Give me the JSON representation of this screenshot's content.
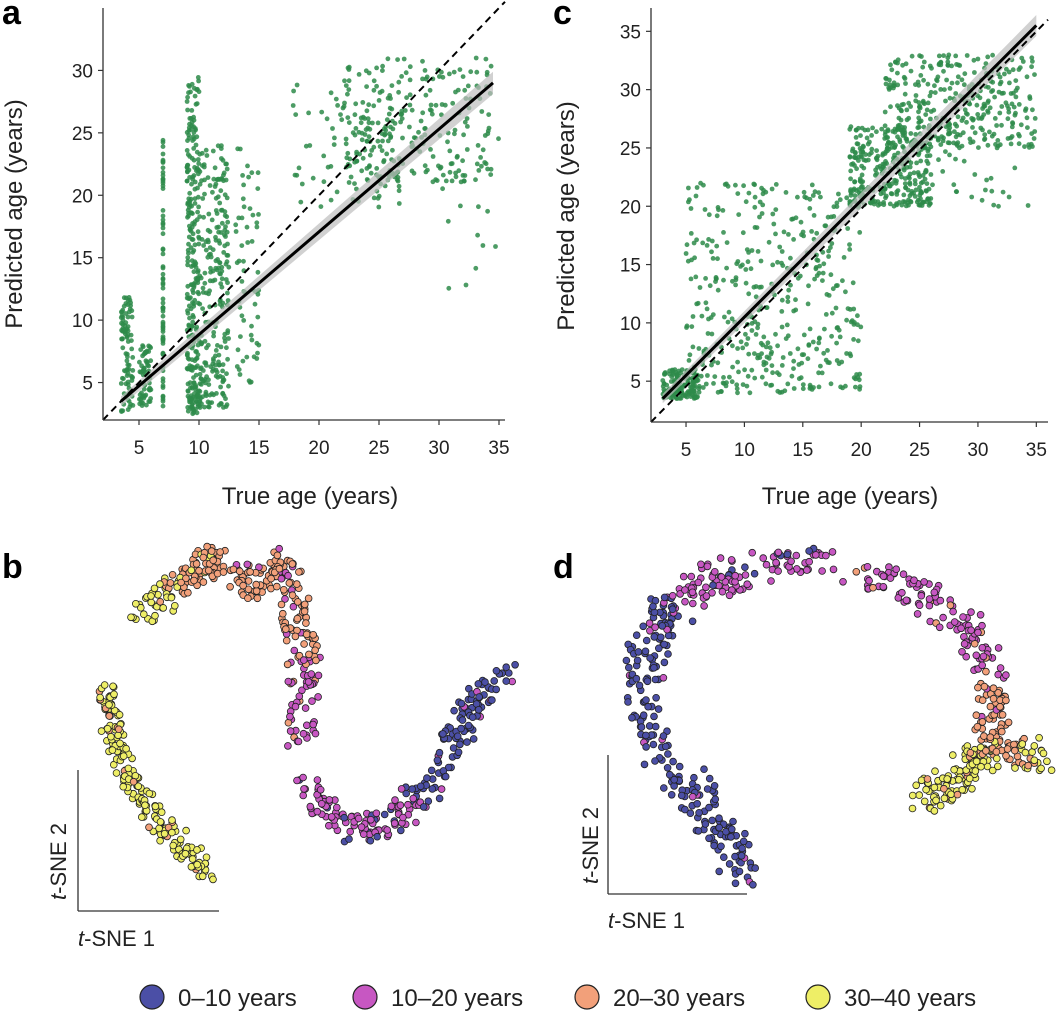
{
  "panel_labels": {
    "a": "a",
    "b": "b",
    "c": "c",
    "d": "d"
  },
  "colors": {
    "scatter": "#2e8b4a",
    "fit": "#000000",
    "ci": "#bdbdbd",
    "class_0_10": "#4b4fa6",
    "class_10_20": "#c757c2",
    "class_20_30": "#f2a07a",
    "class_30_40": "#eeee66"
  },
  "chart_data": [
    {
      "id": "a",
      "type": "scatter",
      "xlabel": "True age (years)",
      "ylabel": "Predicted age (years)",
      "xlim": [
        2,
        35.5
      ],
      "ylim": [
        2,
        35
      ],
      "xticks": [
        5,
        10,
        15,
        20,
        25,
        30,
        35
      ],
      "yticks": [
        5,
        10,
        15,
        20,
        25,
        30
      ],
      "identity_line": [
        [
          2,
          2
        ],
        [
          35.5,
          35.5
        ]
      ],
      "fit_line": [
        [
          3.5,
          3.5
        ],
        [
          34.5,
          29
        ]
      ],
      "clusters": [
        {
          "x": [
            3.5,
            4.5
          ],
          "y": [
            2.5,
            12
          ],
          "n": 90
        },
        {
          "x": [
            5,
            6
          ],
          "y": [
            3,
            8
          ],
          "n": 60
        },
        {
          "x": [
            7,
            7
          ],
          "y": [
            2.5,
            24.5
          ],
          "n": 70
        },
        {
          "x": [
            9,
            10
          ],
          "y": [
            2.5,
            29.5
          ],
          "n": 260
        },
        {
          "x": [
            10,
            12.5
          ],
          "y": [
            3,
            24
          ],
          "n": 240
        },
        {
          "x": [
            13,
            15
          ],
          "y": [
            5,
            24
          ],
          "n": 60
        },
        {
          "x": [
            17.5,
            27
          ],
          "y": [
            19,
            29
          ],
          "n": 80
        },
        {
          "x": [
            22,
            34.5
          ],
          "y": [
            21,
            31
          ],
          "n": 230
        },
        {
          "x": [
            30,
            35
          ],
          "y": [
            12.5,
            25
          ],
          "n": 20
        }
      ]
    },
    {
      "id": "c",
      "type": "scatter",
      "xlabel": "True age (years)",
      "ylabel": "Predicted age (years)",
      "xlim": [
        2,
        36
      ],
      "ylim": [
        1.5,
        37
      ],
      "xticks": [
        5,
        10,
        15,
        20,
        25,
        30,
        35
      ],
      "yticks": [
        5,
        10,
        15,
        20,
        25,
        30,
        35
      ],
      "identity_line": [
        [
          2,
          1.5
        ],
        [
          36,
          36
        ]
      ],
      "fit_line": [
        [
          3,
          3.5
        ],
        [
          35,
          35.5
        ]
      ],
      "clusters": [
        {
          "x": [
            3,
            6
          ],
          "y": [
            3.5,
            6
          ],
          "n": 140
        },
        {
          "x": [
            5,
            20
          ],
          "y": [
            4,
            22
          ],
          "n": 420
        },
        {
          "x": [
            19,
            26
          ],
          "y": [
            20,
            27
          ],
          "n": 320
        },
        {
          "x": [
            22,
            35
          ],
          "y": [
            25,
            33
          ],
          "n": 320
        },
        {
          "x": [
            26,
            35
          ],
          "y": [
            20,
            28
          ],
          "n": 40
        }
      ]
    },
    {
      "id": "b",
      "type": "scatter",
      "xlabel": "t-SNE 1",
      "ylabel": "t-SNE 2",
      "legend": [
        "0–10 years",
        "10–20 years",
        "20–30 years",
        "30–40 years"
      ]
    },
    {
      "id": "d",
      "type": "scatter",
      "xlabel": "t-SNE 1",
      "ylabel": "t-SNE 2",
      "legend": [
        "0–10 years",
        "10–20 years",
        "20–30 years",
        "30–40 years"
      ]
    }
  ],
  "tsne_axes": {
    "italic_prefix": "t",
    "x_suffix": "-SNE 1",
    "y_suffix": "-SNE 2"
  },
  "legend": {
    "items": [
      {
        "label": "0–10 years",
        "color": "#4b4fa6"
      },
      {
        "label": "10–20 years",
        "color": "#c757c2"
      },
      {
        "label": "20–30 years",
        "color": "#f2a07a"
      },
      {
        "label": "30–40 years",
        "color": "#eeee66"
      }
    ]
  }
}
